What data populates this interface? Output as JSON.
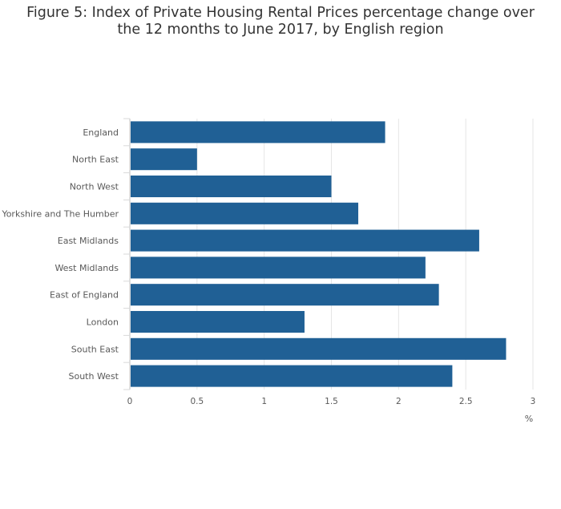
{
  "chart_data": {
    "type": "bar",
    "orientation": "horizontal",
    "title": "Figure 5: Index of Private Housing Rental Prices percentage change over the 12 months to June 2017, by English region",
    "xlabel": "%",
    "ylabel": "",
    "categories": [
      "England",
      "North East",
      "North West",
      "Yorkshire and The Humber",
      "East Midlands",
      "West Midlands",
      "East of England",
      "London",
      "South East",
      "South West"
    ],
    "values": [
      1.9,
      0.5,
      1.5,
      1.7,
      2.6,
      2.2,
      2.3,
      1.3,
      2.8,
      2.4
    ],
    "xlim": [
      0,
      3
    ],
    "x_ticks": [
      0,
      0.5,
      1,
      1.5,
      2,
      2.5,
      3
    ],
    "x_tick_labels": [
      "0",
      "0.5",
      "1",
      "1.5",
      "2",
      "2.5",
      "3"
    ],
    "grid": true,
    "legend": "none",
    "bar_color": "#206095",
    "grid_color": "#e6e6e6",
    "text_color": "#595959"
  }
}
